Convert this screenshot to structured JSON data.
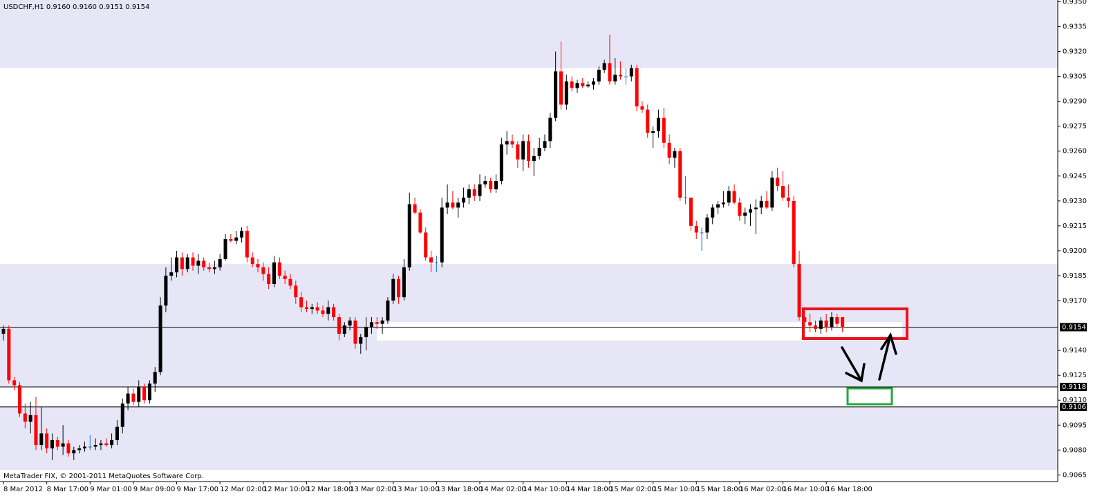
{
  "chart_data": {
    "type": "candlestick",
    "title": "USDCHF,H1  0.9160 0.9160 0.9151 0.9154",
    "footer": "MetaTrader FIX, © 2001-2011 MetaQuotes Software Corp.",
    "x": [
      "8 Mar 2012",
      null,
      null,
      null,
      null,
      null,
      null,
      null,
      "8 Mar 17:00",
      null,
      null,
      null,
      null,
      null,
      null,
      null,
      "9 Mar 01:00",
      null,
      null,
      null,
      null,
      null,
      null,
      null,
      "9 Mar 09:00",
      null,
      null,
      null,
      null,
      null,
      null,
      null,
      "9 Mar 17:00",
      null,
      null,
      null,
      null,
      null,
      null,
      null,
      "12 Mar 02:00",
      null,
      null,
      null,
      null,
      null,
      null,
      null,
      "12 Mar 10:00",
      null,
      null,
      null,
      null,
      null,
      null,
      null,
      "12 Mar 18:00",
      null,
      null,
      null,
      null,
      null,
      null,
      null,
      "13 Mar 02:00",
      null,
      null,
      null,
      null,
      null,
      null,
      null,
      "13 Mar 10:00",
      null,
      null,
      null,
      null,
      null,
      null,
      null,
      "13 Mar 18:00",
      null,
      null,
      null,
      null,
      null,
      null,
      null,
      "14 Mar 02:00",
      null,
      null,
      null,
      null,
      null,
      null,
      null,
      "14 Mar 10:00",
      null,
      null,
      null,
      null,
      null,
      null,
      null,
      "14 Mar 18:00",
      null,
      null,
      null,
      null,
      null,
      null,
      null,
      "15 Mar 02:00",
      null,
      null,
      null,
      null,
      null,
      null,
      null,
      "15 Mar 10:00",
      null,
      null,
      null,
      null,
      null,
      null,
      null,
      "15 Mar 18:00",
      null,
      null,
      null,
      null,
      null,
      null,
      null,
      "16 Mar 02:00",
      null,
      null,
      null,
      null,
      null,
      null,
      null,
      "16 Mar 10:00",
      null,
      null,
      null,
      null,
      null,
      null,
      null,
      "16 Mar 18:00",
      null,
      null,
      null
    ],
    "open": [
      0.915,
      0.9153,
      0.9122,
      0.9119,
      0.9102,
      0.9097,
      0.9101,
      0.9083,
      0.909,
      0.9081,
      0.9086,
      0.9082,
      0.9084,
      0.9078,
      0.908,
      0.9081,
      0.9082,
      0.9082,
      0.9083,
      0.9084,
      0.9083,
      0.9086,
      0.9094,
      0.9108,
      0.9114,
      0.9109,
      0.9118,
      0.911,
      0.912,
      0.9127,
      0.9167,
      0.9185,
      0.9187,
      0.9196,
      0.9189,
      0.9196,
      0.9191,
      0.9194,
      0.919,
      0.9189,
      0.919,
      0.9195,
      0.9207,
      0.9206,
      0.9208,
      0.9212,
      0.9196,
      0.9192,
      0.919,
      0.9186,
      0.918,
      0.9193,
      0.9185,
      0.9183,
      0.9179,
      0.9172,
      0.9166,
      0.9165,
      0.9166,
      0.9164,
      0.9162,
      0.9166,
      0.916,
      0.915,
      0.9155,
      0.9158,
      0.9144,
      0.9148,
      0.9154,
      0.9157,
      0.9156,
      0.9158,
      0.917,
      0.9183,
      0.9172,
      0.919,
      0.9228,
      0.9223,
      0.9211,
      0.9196,
      0.9193,
      0.9193,
      0.9226,
      0.9229,
      0.9226,
      0.9229,
      0.9232,
      0.9237,
      0.9233,
      0.924,
      0.9242,
      0.9237,
      0.9242,
      0.9264,
      0.9266,
      0.9264,
      0.9255,
      0.9266,
      0.9254,
      0.9257,
      0.9262,
      0.9266,
      0.928,
      0.9308,
      0.9288,
      0.9302,
      0.9298,
      0.9301,
      0.9299,
      0.93,
      0.9302,
      0.9309,
      0.9313,
      0.9302,
      0.9306,
      0.9305,
      0.9305,
      0.931,
      0.9287,
      0.9285,
      0.9271,
      0.9272,
      0.928,
      0.9265,
      0.9256,
      0.926,
      0.9232,
      0.9232,
      0.9215,
      0.9211,
      0.9211,
      0.922,
      0.9226,
      0.9228,
      0.9229,
      0.9236,
      0.9229,
      0.9221,
      0.9223,
      0.9225,
      0.9226,
      0.923,
      0.9226,
      0.9244,
      0.9239,
      0.9232,
      0.923,
      0.9192,
      0.916,
      0.9157,
      0.9155,
      0.9153,
      0.9158,
      0.9154,
      0.916,
      0.916
    ],
    "high": [
      0.9155,
      0.9155,
      0.9124,
      0.9121,
      0.9108,
      0.9109,
      0.9112,
      0.9106,
      0.9093,
      0.909,
      0.9088,
      0.9095,
      0.9086,
      0.9082,
      0.9083,
      0.9085,
      0.9089,
      0.9087,
      0.9086,
      0.9087,
      0.909,
      0.9098,
      0.9111,
      0.9118,
      0.9117,
      0.9122,
      0.912,
      0.9122,
      0.913,
      0.9172,
      0.919,
      0.9196,
      0.92,
      0.9199,
      0.9198,
      0.9199,
      0.9198,
      0.9196,
      0.9193,
      0.9194,
      0.9198,
      0.921,
      0.921,
      0.9212,
      0.9214,
      0.9215,
      0.9199,
      0.9195,
      0.9193,
      0.919,
      0.9197,
      0.9196,
      0.9188,
      0.9186,
      0.9182,
      0.9175,
      0.917,
      0.9168,
      0.9169,
      0.9167,
      0.917,
      0.9168,
      0.9162,
      0.9157,
      0.916,
      0.916,
      0.915,
      0.916,
      0.916,
      0.916,
      0.916,
      0.9172,
      0.9186,
      0.9185,
      0.9195,
      0.9235,
      0.9232,
      0.9225,
      0.9214,
      0.92,
      0.9197,
      0.9232,
      0.924,
      0.9236,
      0.9232,
      0.9238,
      0.924,
      0.924,
      0.9246,
      0.9245,
      0.9244,
      0.9246,
      0.9268,
      0.9272,
      0.927,
      0.9266,
      0.927,
      0.927,
      0.9262,
      0.9268,
      0.927,
      0.9283,
      0.932,
      0.9326,
      0.9306,
      0.9305,
      0.9303,
      0.9304,
      0.9302,
      0.9304,
      0.9311,
      0.9315,
      0.933,
      0.9316,
      0.9314,
      0.931,
      0.9312,
      0.9312,
      0.929,
      0.9288,
      0.9275,
      0.9285,
      0.9286,
      0.927,
      0.9262,
      0.9262,
      0.9245,
      0.9232,
      0.9218,
      0.9214,
      0.9222,
      0.9228,
      0.923,
      0.9236,
      0.9239,
      0.924,
      0.9232,
      0.9226,
      0.9228,
      0.9231,
      0.9233,
      0.9236,
      0.9248,
      0.925,
      0.9248,
      0.924,
      0.9233,
      0.92,
      0.9166,
      0.9162,
      0.9158,
      0.916,
      0.9162,
      0.9163,
      0.9162,
      0.916
    ],
    "low": [
      0.9146,
      0.912,
      0.9116,
      0.91,
      0.9093,
      0.909,
      0.908,
      0.908,
      0.9078,
      0.9074,
      0.908,
      0.9077,
      0.9076,
      0.9074,
      0.9078,
      0.9079,
      0.908,
      0.908,
      0.908,
      0.9082,
      0.9081,
      0.9083,
      0.909,
      0.9104,
      0.9107,
      0.9106,
      0.9108,
      0.9108,
      0.9115,
      0.9125,
      0.9163,
      0.9182,
      0.9184,
      0.9185,
      0.9187,
      0.9188,
      0.9186,
      0.9188,
      0.9187,
      0.9186,
      0.9188,
      0.9194,
      0.9205,
      0.9204,
      0.9205,
      0.9193,
      0.919,
      0.9187,
      0.9182,
      0.9177,
      0.9178,
      0.9183,
      0.918,
      0.9177,
      0.9168,
      0.9163,
      0.9163,
      0.9162,
      0.9162,
      0.916,
      0.9158,
      0.9158,
      0.9146,
      0.9148,
      0.9152,
      0.9141,
      0.9138,
      0.914,
      0.915,
      0.9153,
      0.915,
      0.9156,
      0.9168,
      0.9168,
      0.917,
      0.9188,
      0.9222,
      0.921,
      0.9194,
      0.9187,
      0.9187,
      0.919,
      0.9222,
      0.9225,
      0.922,
      0.9226,
      0.9228,
      0.923,
      0.923,
      0.9238,
      0.9235,
      0.9235,
      0.924,
      0.9258,
      0.9262,
      0.925,
      0.9248,
      0.925,
      0.9245,
      0.9255,
      0.926,
      0.9262,
      0.9278,
      0.9285,
      0.9285,
      0.9296,
      0.9295,
      0.9298,
      0.9298,
      0.9297,
      0.93,
      0.9307,
      0.93,
      0.93,
      0.9303,
      0.93,
      0.9302,
      0.9284,
      0.9283,
      0.9268,
      0.9262,
      0.9268,
      0.9262,
      0.9252,
      0.925,
      0.923,
      0.9228,
      0.9212,
      0.9207,
      0.92,
      0.9207,
      0.9216,
      0.9222,
      0.9226,
      0.9227,
      0.9228,
      0.9218,
      0.9216,
      0.9215,
      0.921,
      0.9222,
      0.9225,
      0.9224,
      0.9236,
      0.923,
      0.9226,
      0.919,
      0.9158,
      0.9153,
      0.9151,
      0.9151,
      0.915,
      0.9151,
      0.9152,
      0.9154,
      0.9151
    ],
    "close": [
      0.9153,
      0.9122,
      0.9119,
      0.9102,
      0.9097,
      0.9101,
      0.9083,
      0.909,
      0.9081,
      0.9086,
      0.9082,
      0.9084,
      0.9078,
      0.908,
      0.9081,
      0.9082,
      0.9082,
      0.9083,
      0.9084,
      0.9083,
      0.9086,
      0.9094,
      0.9108,
      0.9114,
      0.9109,
      0.9118,
      0.911,
      0.912,
      0.9127,
      0.9167,
      0.9185,
      0.9187,
      0.9196,
      0.9189,
      0.9196,
      0.9191,
      0.9194,
      0.919,
      0.9189,
      0.919,
      0.9195,
      0.9207,
      0.9206,
      0.9208,
      0.9212,
      0.9196,
      0.9192,
      0.919,
      0.9186,
      0.918,
      0.9193,
      0.9185,
      0.9183,
      0.9179,
      0.9172,
      0.9166,
      0.9165,
      0.9166,
      0.9164,
      0.9162,
      0.9166,
      0.916,
      0.915,
      0.9155,
      0.9158,
      0.9144,
      0.9148,
      0.9154,
      0.9157,
      0.9156,
      0.9158,
      0.917,
      0.9183,
      0.9172,
      0.919,
      0.9228,
      0.9223,
      0.9211,
      0.9196,
      0.9193,
      0.9193,
      0.9226,
      0.9229,
      0.9226,
      0.9229,
      0.9232,
      0.9237,
      0.9233,
      0.924,
      0.9242,
      0.9237,
      0.9242,
      0.9264,
      0.9266,
      0.9264,
      0.9255,
      0.9266,
      0.9254,
      0.9257,
      0.9262,
      0.9266,
      0.928,
      0.9308,
      0.9288,
      0.9302,
      0.9298,
      0.9301,
      0.9299,
      0.93,
      0.9302,
      0.9309,
      0.9313,
      0.9302,
      0.9306,
      0.9305,
      0.9305,
      0.931,
      0.9287,
      0.9285,
      0.9271,
      0.9272,
      0.928,
      0.9265,
      0.9256,
      0.926,
      0.9232,
      0.9232,
      0.9215,
      0.9211,
      0.9211,
      0.922,
      0.9226,
      0.9228,
      0.9229,
      0.9236,
      0.9229,
      0.9221,
      0.9223,
      0.9225,
      0.9226,
      0.923,
      0.9226,
      0.9244,
      0.9239,
      0.9232,
      0.923,
      0.9192,
      0.916,
      0.9157,
      0.9155,
      0.9153,
      0.9158,
      0.9154,
      0.916,
      0.9156,
      0.9154
    ],
    "up_color": "#000000",
    "down_color": "#ff0000",
    "doji_color": "#1e6fd9",
    "ylim": [
      0.9061,
      0.9351
    ],
    "yticks": [
      {
        "value": 0.935,
        "label": "0.9350"
      },
      {
        "value": 0.9335,
        "label": "0.9335"
      },
      {
        "value": 0.932,
        "label": "0.9320"
      },
      {
        "value": 0.9305,
        "label": "0.9305"
      },
      {
        "value": 0.929,
        "label": "0.9290"
      },
      {
        "value": 0.9275,
        "label": "0.9275"
      },
      {
        "value": 0.926,
        "label": "0.9260"
      },
      {
        "value": 0.9245,
        "label": "0.9245"
      },
      {
        "value": 0.923,
        "label": "0.9230"
      },
      {
        "value": 0.9215,
        "label": "0.9215"
      },
      {
        "value": 0.92,
        "label": "0.9200"
      },
      {
        "value": 0.9185,
        "label": "0.9185"
      },
      {
        "value": 0.917,
        "label": "0.9170"
      },
      {
        "value": 0.914,
        "label": "0.9140"
      },
      {
        "value": 0.9125,
        "label": "0.9125"
      },
      {
        "value": 0.911,
        "label": "0.9110"
      },
      {
        "value": 0.9095,
        "label": "0.9095"
      },
      {
        "value": 0.908,
        "label": "0.9080"
      },
      {
        "value": 0.9065,
        "label": "0.9065"
      }
    ],
    "levels": [
      {
        "value": 0.9154,
        "label": "0.9154"
      },
      {
        "value": 0.9118,
        "label": "0.9118"
      },
      {
        "value": 0.9106,
        "label": "0.9106"
      }
    ],
    "zones": [
      {
        "from": 0.931,
        "to": 0.9351,
        "color": "#e6e6f7"
      },
      {
        "from": 0.9118,
        "to": 0.9192,
        "color": "#e6e6f7"
      },
      {
        "from": 0.9068,
        "to": 0.9106,
        "color": "#e6e6f7"
      }
    ]
  }
}
